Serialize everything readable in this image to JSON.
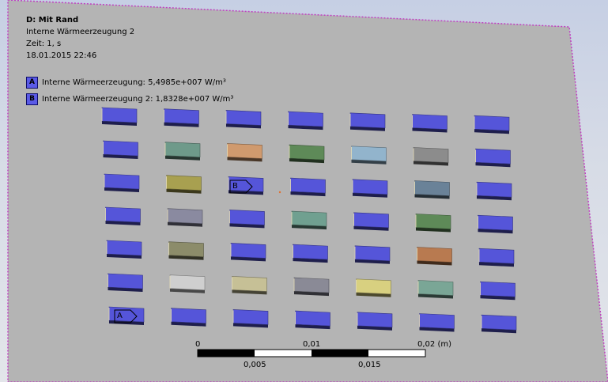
{
  "annotation": {
    "title": "D: Mit Rand",
    "subtitle": "Interne Wärmeerzeugung 2",
    "time": "Zeit: 1, s",
    "date": "18.01.2015 22:46"
  },
  "legend": [
    {
      "key": "A",
      "text": "Interne Wärmeerzeugung: 5,4985e+007 W/m³"
    },
    {
      "key": "B",
      "text": "Interne Wärmeerzeugung 2: 1,8328e+007 W/m³"
    }
  ],
  "scale_bar": {
    "top_labels": [
      "0",
      "0,01",
      "0,02 (m)"
    ],
    "bottom_labels": [
      "0,005",
      "0,015"
    ]
  },
  "markers": {
    "a": "A",
    "b": "B"
  },
  "colors": {
    "background_top": "#c6cfe4",
    "plate": "#b4b4b4",
    "plate_border": "#c040c0",
    "component_blue": "#5555d9",
    "component_shadow": "#2a2a60"
  },
  "components": [
    {
      "name": "component-r1-c1",
      "color": "#5555d9"
    },
    {
      "name": "component-r1-c2",
      "color": "#5555d9"
    },
    {
      "name": "component-r1-c3",
      "color": "#5555d9"
    },
    {
      "name": "component-r1-c4",
      "color": "#5555d9"
    },
    {
      "name": "component-r1-c5",
      "color": "#5555d9"
    },
    {
      "name": "component-r1-c6",
      "color": "#5555d9"
    },
    {
      "name": "component-r1-c7",
      "color": "#5555d9"
    },
    {
      "name": "component-r2-c1",
      "color": "#5555d9"
    },
    {
      "name": "component-r2-c2",
      "color": "#6e9a8a"
    },
    {
      "name": "component-r2-c3",
      "color": "#d09a6e"
    },
    {
      "name": "component-r2-c4",
      "color": "#5e8a58"
    },
    {
      "name": "component-r2-c5",
      "color": "#92b4cc"
    },
    {
      "name": "component-r2-c6",
      "color": "#8c8c8c"
    },
    {
      "name": "component-r2-c7",
      "color": "#5555d9"
    },
    {
      "name": "component-r3-c1",
      "color": "#5555d9"
    },
    {
      "name": "component-r3-c2",
      "color": "#a8a050"
    },
    {
      "name": "component-r3-c3",
      "color": "#5555d9"
    },
    {
      "name": "component-r3-c4",
      "color": "#5555d9"
    },
    {
      "name": "component-r3-c5",
      "color": "#5555d9"
    },
    {
      "name": "component-r3-c6",
      "color": "#6a8298"
    },
    {
      "name": "component-r3-c7",
      "color": "#5555d9"
    },
    {
      "name": "component-r4-c1",
      "color": "#5555d9"
    },
    {
      "name": "component-r4-c2",
      "color": "#8a8aa0"
    },
    {
      "name": "component-r4-c3",
      "color": "#5555d9"
    },
    {
      "name": "component-r4-c4",
      "color": "#70a090"
    },
    {
      "name": "component-r4-c5",
      "color": "#5555d9"
    },
    {
      "name": "component-r4-c6",
      "color": "#5e8a58"
    },
    {
      "name": "component-r4-c7",
      "color": "#5555d9"
    },
    {
      "name": "component-r5-c1",
      "color": "#5555d9"
    },
    {
      "name": "component-r5-c2",
      "color": "#8c8c6a"
    },
    {
      "name": "component-r5-c3",
      "color": "#5555d9"
    },
    {
      "name": "component-r5-c4",
      "color": "#5555d9"
    },
    {
      "name": "component-r5-c5",
      "color": "#5555d9"
    },
    {
      "name": "component-r5-c6",
      "color": "#b87a50"
    },
    {
      "name": "component-r5-c7",
      "color": "#5555d9"
    },
    {
      "name": "component-r6-c1",
      "color": "#5555d9"
    },
    {
      "name": "component-r6-c2",
      "color": "#cfcfcf"
    },
    {
      "name": "component-r6-c3",
      "color": "#c6c096"
    },
    {
      "name": "component-r6-c4",
      "color": "#8a8a96"
    },
    {
      "name": "component-r6-c5",
      "color": "#d8d080"
    },
    {
      "name": "component-r6-c6",
      "color": "#7aa696"
    },
    {
      "name": "component-r6-c7",
      "color": "#5555d9"
    },
    {
      "name": "component-r7-c1",
      "color": "#5555d9"
    },
    {
      "name": "component-r7-c2",
      "color": "#5555d9"
    },
    {
      "name": "component-r7-c3",
      "color": "#5555d9"
    },
    {
      "name": "component-r7-c4",
      "color": "#5555d9"
    },
    {
      "name": "component-r7-c5",
      "color": "#5555d9"
    },
    {
      "name": "component-r7-c6",
      "color": "#5555d9"
    },
    {
      "name": "component-r7-c7",
      "color": "#5555d9"
    }
  ]
}
